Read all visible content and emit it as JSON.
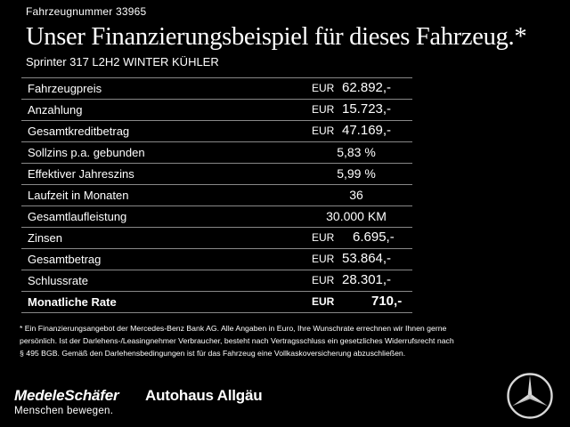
{
  "header": {
    "vehicle_number": "Fahrzeugnummer 33965",
    "headline": "Unser Finanzierungsbeispiel für dieses Fahrzeug.*",
    "model": "Sprinter 317 L2H2 WINTER KÜHLER"
  },
  "table": {
    "rows": [
      {
        "label": "Fahrzeugpreis",
        "currency": "EUR",
        "value": "62.892,-"
      },
      {
        "label": "Anzahlung",
        "currency": "EUR",
        "value": "15.723,-"
      },
      {
        "label": "Gesamtkreditbetrag",
        "currency": "EUR",
        "value": "47.169,-"
      },
      {
        "label": "Sollzins p.a. gebunden",
        "currency": "",
        "value": "5,83 %"
      },
      {
        "label": "Effektiver Jahreszins",
        "currency": "",
        "value": "5,99 %"
      },
      {
        "label": "Laufzeit in Monaten",
        "currency": "",
        "value": "36"
      },
      {
        "label": "Gesamtlaufleistung",
        "currency": "",
        "value": "30.000 KM"
      },
      {
        "label": "Zinsen",
        "currency": "EUR",
        "value": "6.695,-"
      },
      {
        "label": "Gesamtbetrag",
        "currency": "EUR",
        "value": "53.864,-"
      },
      {
        "label": "Schlussrate",
        "currency": "EUR",
        "value": "28.301,-"
      },
      {
        "label": "Monatliche Rate",
        "currency": "EUR",
        "value": "710,-"
      }
    ]
  },
  "footnote": {
    "line1": "* Ein Finanzierungsangebot der Mercedes-Benz Bank AG. Alle Angaben in Euro, Ihre Wunschrate errechnen wir Ihnen gerne",
    "line2": "persönlich. Ist der Darlehens-/Leasingnehmer Verbraucher, besteht nach Vertragsschluss ein gesetzliches Widerrufsrecht nach",
    "line3": "§ 495 BGB. Gemäß den Darlehensbedingungen ist für das Fahrzeug eine Vollkaskoversicherung abzuschließen."
  },
  "footer": {
    "dealer_logo": "MedeleSchäfer",
    "claim": "Menschen bewegen.",
    "partner_logo": "Autohaus Allgäu",
    "brand_icon": "mercedes-star-icon"
  },
  "colors": {
    "background": "#000000",
    "text": "#ffffff",
    "rule": "#888888"
  }
}
